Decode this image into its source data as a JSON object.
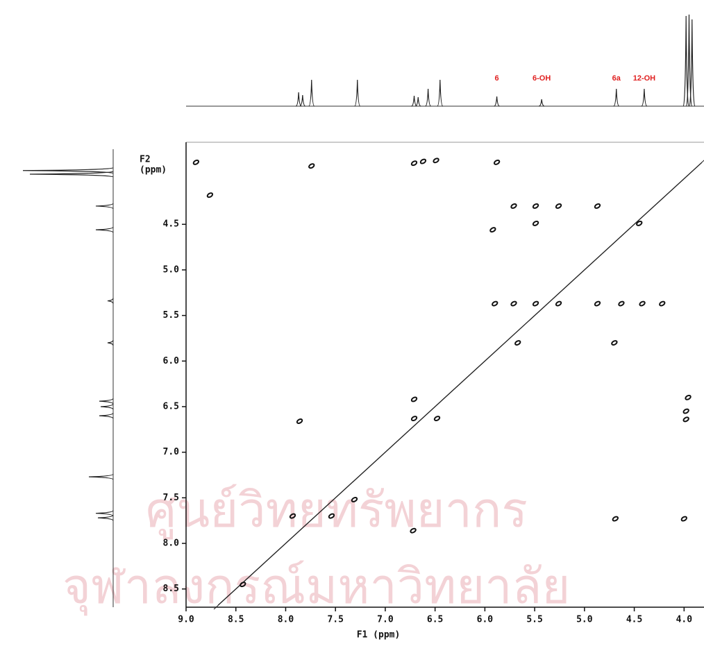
{
  "chart_data": {
    "type": "scatter",
    "x_label": "F1 (ppm)",
    "y_label": [
      "F2",
      "(ppm)"
    ],
    "xlim": [
      9.0,
      3.8
    ],
    "ylim": [
      3.6,
      8.7
    ],
    "xticks": [
      {
        "value": 9,
        "label": "9.0"
      },
      8.5,
      {
        "value": 8,
        "label": "8.0"
      },
      7.5,
      {
        "value": 7,
        "label": "7.0"
      },
      6.5,
      {
        "value": 6,
        "label": "6.0"
      },
      5.5,
      {
        "value": 5,
        "label": "5.0"
      },
      4.5,
      {
        "value": 4,
        "label": "4.0"
      }
    ],
    "yticks": [
      4.5,
      {
        "value": 5,
        "label": "5.0"
      },
      5.5,
      {
        "value": 6,
        "label": "6.0"
      },
      6.5,
      {
        "value": 7,
        "label": "7.0"
      },
      7.5,
      {
        "value": 8,
        "label": "8.0"
      },
      8.5
    ],
    "diagonal": true,
    "color": "#111111",
    "x": [
      8.9,
      8.76,
      7.74,
      6.71,
      6.62,
      6.49,
      5.88,
      5.71,
      5.49,
      5.26,
      4.87,
      5.92,
      5.49,
      4.45,
      5.9,
      5.71,
      5.49,
      5.26,
      4.87,
      4.63,
      4.42,
      4.22,
      5.67,
      4.7,
      3.96,
      3.98,
      3.98,
      7.86,
      6.71,
      6.71,
      6.48,
      7.93,
      7.54,
      6.72,
      4.69,
      4.0,
      8.43,
      7.31
    ],
    "y": [
      3.82,
      4.18,
      3.86,
      3.83,
      3.81,
      3.8,
      3.82,
      4.3,
      4.3,
      4.3,
      4.3,
      4.56,
      4.49,
      4.49,
      5.37,
      5.37,
      5.37,
      5.37,
      5.37,
      5.37,
      5.37,
      5.37,
      5.8,
      5.8,
      6.4,
      6.55,
      6.64,
      6.66,
      6.42,
      6.63,
      6.63,
      7.7,
      7.7,
      7.86,
      7.73,
      7.73,
      8.45,
      7.52
    ],
    "top_projection": {
      "x": [
        7.87,
        7.83,
        7.74,
        7.28,
        6.71,
        6.67,
        6.57,
        6.45,
        5.88,
        5.43,
        4.68,
        4.4,
        3.98,
        3.95,
        3.92
      ],
      "intensity": [
        20,
        16,
        38,
        38,
        15,
        13,
        25,
        38,
        14,
        10,
        25,
        25,
        130,
        132,
        125
      ]
    },
    "left_projection": {
      "y": [
        3.91,
        3.95,
        4.3,
        4.56,
        5.34,
        5.8,
        6.44,
        6.5,
        6.6,
        7.27,
        7.67,
        7.72
      ],
      "intensity": [
        130,
        120,
        25,
        25,
        8,
        8,
        20,
        18,
        20,
        35,
        25,
        22
      ]
    },
    "annotations": [
      {
        "text": "6",
        "x": 5.88
      },
      {
        "text": "6-OH",
        "x": 5.43
      },
      {
        "text": "6a",
        "x": 4.68
      },
      {
        "text": "12-OH",
        "x": 4.4
      }
    ],
    "watermark": [
      "ศูนย์วิทยทรัพยากร",
      "จุฬาลงกรณ์มหาวิทยาลัย"
    ]
  }
}
